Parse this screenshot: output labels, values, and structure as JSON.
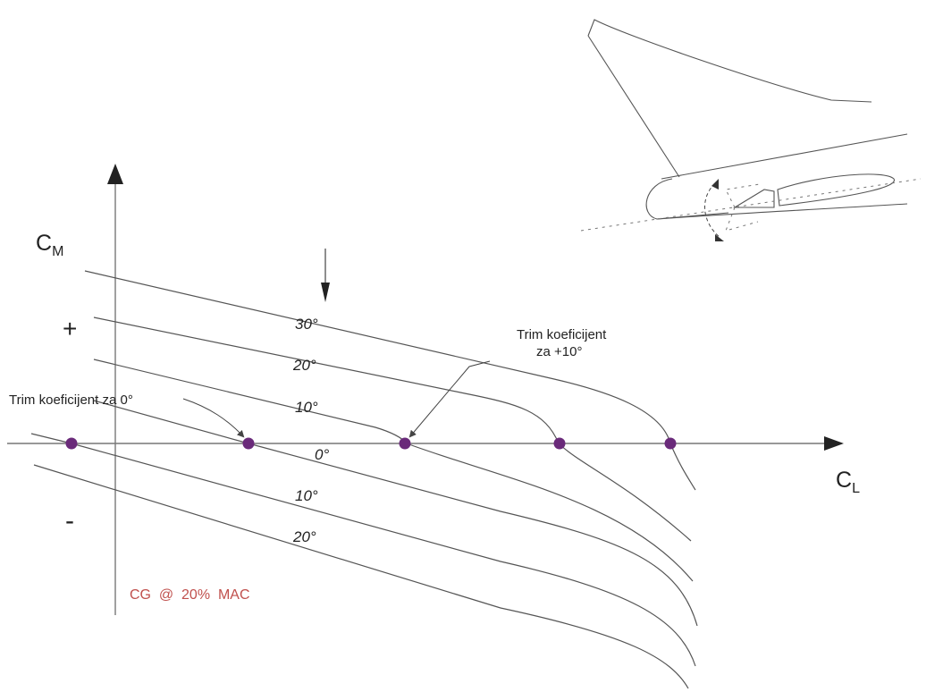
{
  "axes": {
    "y_label": "C",
    "y_label_sub": "M",
    "x_label": "C",
    "x_label_sub": "L",
    "plus_sign": "+",
    "minus_sign": "-"
  },
  "curve_labels": [
    "30°",
    "20°",
    "10°",
    "0°",
    "10°",
    "20°"
  ],
  "annotations": {
    "trim_zero": "Trim koeficijent za 0°",
    "trim_ten_line1": "Trim koeficijent",
    "trim_ten_line2": "za +10°",
    "cg_note": "CG  @  20%  MAC"
  },
  "colors": {
    "dot": "#6a2a7a",
    "cg_text": "#c0504d",
    "line": "#555555"
  }
}
